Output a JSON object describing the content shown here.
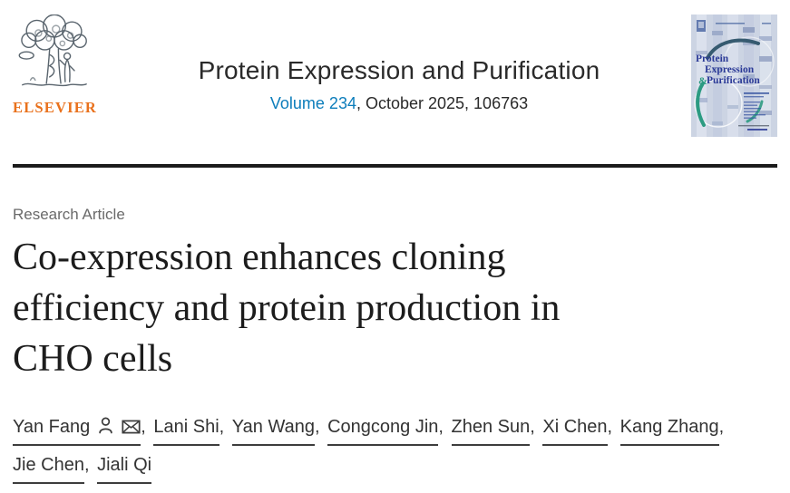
{
  "header": {
    "publisher_wordmark": "ELSEVIER",
    "journal_title": "Protein Expression and Purification",
    "volume_link": "Volume 234",
    "issue_info": ", October 2025, 106763",
    "cover": {
      "title_line1": "Protein",
      "title_line2": "Expression",
      "amp": "&",
      "title_line3": "Purification"
    }
  },
  "article": {
    "type_label": "Research Article",
    "title": "Co-expression enhances cloning efficiency and protein production in CHO cells",
    "title_lines": [
      "Co-expression enhances cloning",
      "efficiency and protein production in",
      "CHO cells"
    ],
    "authors": [
      {
        "name": "Yan Fang",
        "corresponding": true
      },
      {
        "name": "Lani Shi"
      },
      {
        "name": "Yan Wang"
      },
      {
        "name": "Congcong Jin"
      },
      {
        "name": "Zhen Sun"
      },
      {
        "name": "Xi Chen"
      },
      {
        "name": "Kang Zhang"
      },
      {
        "name": "Jie Chen"
      },
      {
        "name": "Jiali Qi"
      }
    ]
  },
  "colors": {
    "link_blue": "#0c7dbb",
    "elsevier_orange": "#e9711c",
    "cover_navy": "#2b3a97",
    "cover_teal": "#2c9b82",
    "rule_black": "#1b1b1b",
    "muted_gray": "#6a6a6a"
  }
}
